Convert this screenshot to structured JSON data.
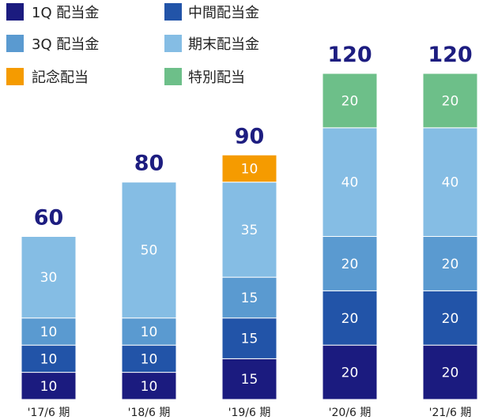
{
  "chart_data": {
    "type": "bar",
    "stacked": true,
    "categories": [
      "'17/6 期",
      "'18/6 期",
      "'19/6 期",
      "'20/6 期",
      "'21/6 期"
    ],
    "series": [
      {
        "name": "1Q 配当金",
        "color": "#1b1b7f",
        "values": [
          10,
          10,
          15,
          20,
          20
        ]
      },
      {
        "name": "中間配当金",
        "color": "#2254a8",
        "values": [
          10,
          10,
          15,
          20,
          20
        ]
      },
      {
        "name": "3Q 配当金",
        "color": "#5a9ad0",
        "values": [
          10,
          10,
          15,
          20,
          20
        ]
      },
      {
        "name": "期末配当金",
        "color": "#85bde4",
        "values": [
          30,
          50,
          35,
          40,
          40
        ]
      },
      {
        "name": "記念配当",
        "color": "#f59b00",
        "values": [
          null,
          null,
          10,
          null,
          null
        ]
      },
      {
        "name": "特別配当",
        "color": "#6dbf89",
        "values": [
          null,
          null,
          null,
          20,
          20
        ]
      }
    ],
    "totals": [
      60,
      80,
      90,
      120,
      120
    ],
    "total_label_color": "#1d1d80",
    "ylim": [
      0,
      120
    ],
    "legend_position": "top-left",
    "grid": false
  }
}
